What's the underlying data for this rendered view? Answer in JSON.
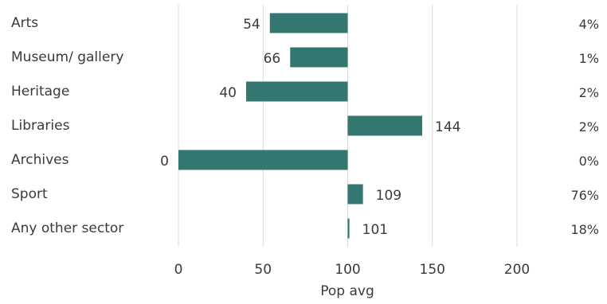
{
  "chart_data": {
    "type": "bar",
    "orientation": "horizontal",
    "categories": [
      "Arts",
      "Museum/ gallery",
      "Heritage",
      "Libraries",
      "Archives",
      "Sport",
      "Any other sector"
    ],
    "values": [
      54,
      66,
      40,
      144,
      0,
      109,
      101
    ],
    "baseline": 100,
    "value_labels": [
      "54",
      "66",
      "40",
      "144",
      "0",
      "109",
      "101"
    ],
    "percent_labels": [
      "4%",
      "1%",
      "2%",
      "2%",
      "0%",
      "76%",
      "18%"
    ],
    "xlabel": "Pop avg",
    "xlim": [
      0,
      200
    ],
    "xticks": [
      "0",
      "50",
      "100",
      "150",
      "200"
    ],
    "grid": true,
    "bar_color": "#347670",
    "grid_color": "#d9d9d9",
    "text_color": "#3a3a3a"
  }
}
